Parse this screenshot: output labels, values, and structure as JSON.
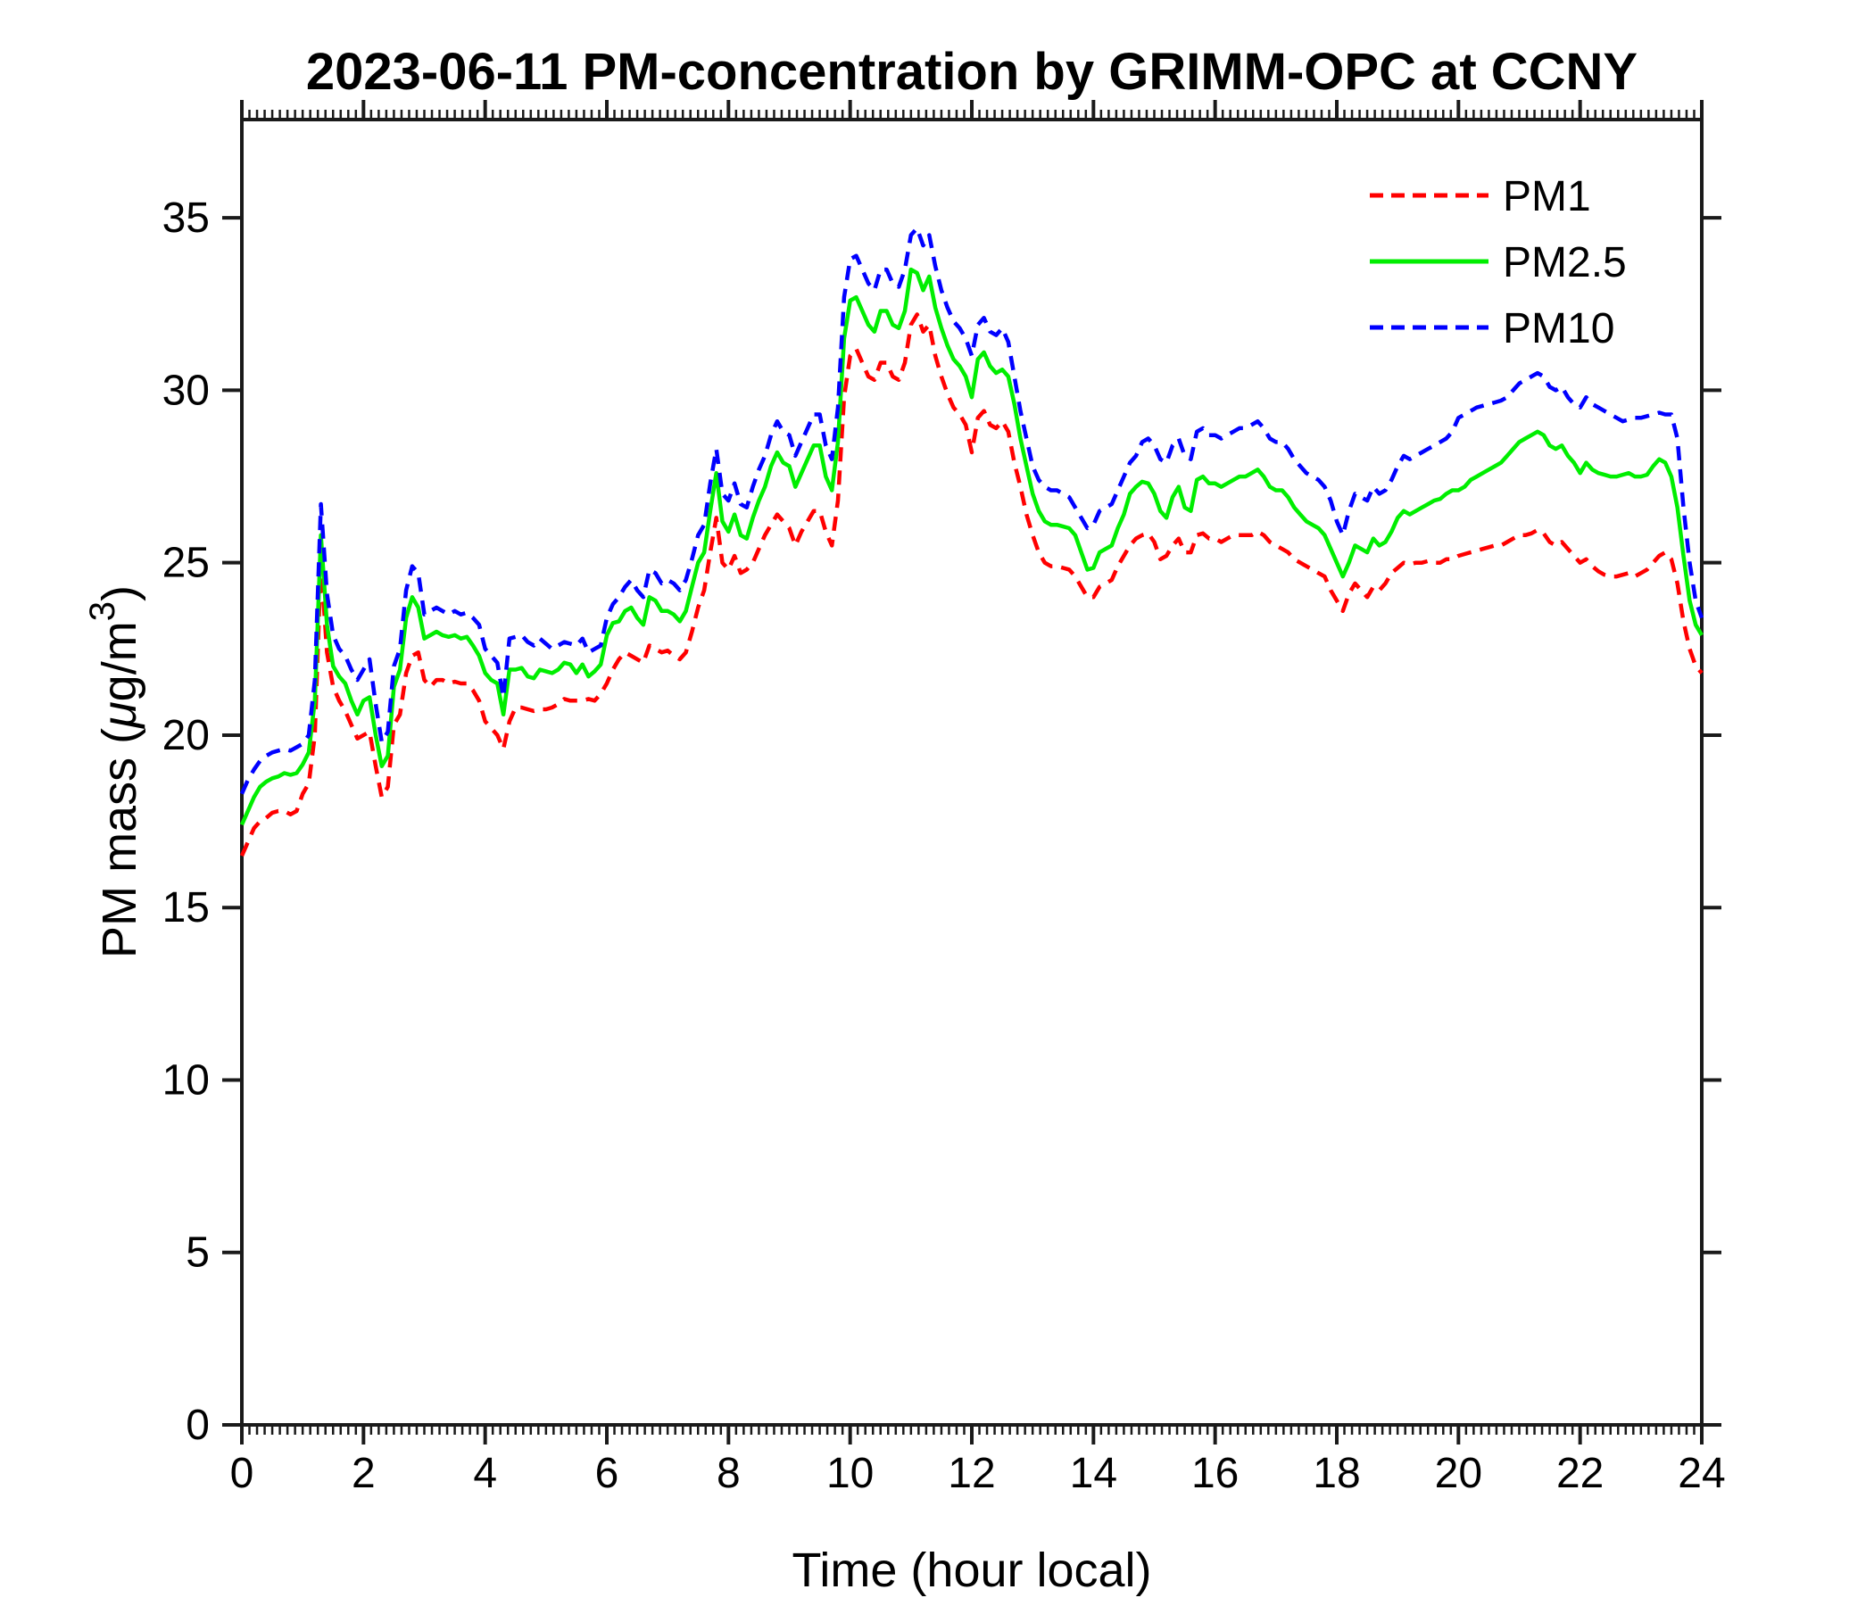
{
  "chart_data": {
    "type": "line",
    "title": "2023-06-11 PM-concentration by GRIMM-OPC at CCNY",
    "xlabel": "Time (hour local)",
    "ylabel": "PM mass (μg/m³)",
    "ylabel_parts": {
      "prefix": "PM mass (",
      "mu": "μ",
      "mid": "g/m",
      "sup": "3",
      "suffix": ")"
    },
    "xlim": [
      0,
      24
    ],
    "ylim": [
      0,
      37.85
    ],
    "x_ticks": [
      0,
      2,
      4,
      6,
      8,
      10,
      12,
      14,
      16,
      18,
      20,
      22,
      24
    ],
    "y_ticks": [
      0,
      5,
      10,
      15,
      20,
      25,
      30,
      35
    ],
    "x_minor_step": 0.125,
    "grid": false,
    "legend_position": "top-right-inside",
    "axis_color": "#1a1a1a",
    "background_color": "#ffffff",
    "x": [
      0,
      0.1,
      0.2,
      0.3,
      0.4,
      0.5,
      0.6,
      0.7,
      0.8,
      0.9,
      1,
      1.1,
      1.2,
      1.3,
      1.4,
      1.5,
      1.6,
      1.7,
      1.8,
      1.9,
      2,
      2.1,
      2.2,
      2.3,
      2.4,
      2.5,
      2.6,
      2.7,
      2.8,
      2.9,
      3,
      3.1,
      3.2,
      3.3,
      3.4,
      3.5,
      3.6,
      3.7,
      3.8,
      3.9,
      4,
      4.1,
      4.2,
      4.3,
      4.4,
      4.5,
      4.6,
      4.7,
      4.8,
      4.9,
      5,
      5.1,
      5.2,
      5.3,
      5.4,
      5.5,
      5.6,
      5.7,
      5.8,
      5.9,
      6,
      6.1,
      6.2,
      6.3,
      6.4,
      6.5,
      6.6,
      6.7,
      6.8,
      6.9,
      7,
      7.1,
      7.2,
      7.3,
      7.4,
      7.5,
      7.6,
      7.7,
      7.8,
      7.9,
      8,
      8.1,
      8.2,
      8.3,
      8.4,
      8.5,
      8.6,
      8.7,
      8.8,
      8.9,
      9,
      9.1,
      9.2,
      9.3,
      9.4,
      9.5,
      9.6,
      9.7,
      9.8,
      9.9,
      10,
      10.1,
      10.2,
      10.3,
      10.4,
      10.5,
      10.6,
      10.7,
      10.8,
      10.9,
      11,
      11.1,
      11.2,
      11.3,
      11.4,
      11.5,
      11.6,
      11.7,
      11.8,
      11.9,
      12,
      12.1,
      12.2,
      12.3,
      12.4,
      12.5,
      12.6,
      12.7,
      12.8,
      12.9,
      13,
      13.1,
      13.2,
      13.3,
      13.4,
      13.5,
      13.6,
      13.7,
      13.8,
      13.9,
      14,
      14.1,
      14.2,
      14.3,
      14.4,
      14.5,
      14.6,
      14.7,
      14.8,
      14.9,
      15,
      15.1,
      15.2,
      15.3,
      15.4,
      15.5,
      15.6,
      15.7,
      15.8,
      15.9,
      16,
      16.1,
      16.2,
      16.3,
      16.4,
      16.5,
      16.6,
      16.7,
      16.8,
      16.9,
      17,
      17.1,
      17.2,
      17.3,
      17.4,
      17.5,
      17.6,
      17.7,
      17.8,
      17.9,
      18,
      18.1,
      18.2,
      18.3,
      18.4,
      18.5,
      18.6,
      18.7,
      18.8,
      18.9,
      19,
      19.1,
      19.2,
      19.3,
      19.4,
      19.5,
      19.6,
      19.7,
      19.8,
      19.9,
      20,
      20.1,
      20.2,
      20.3,
      20.4,
      20.5,
      20.6,
      20.7,
      20.8,
      20.9,
      21,
      21.1,
      21.2,
      21.3,
      21.4,
      21.5,
      21.6,
      21.7,
      21.8,
      21.9,
      22,
      22.1,
      22.2,
      22.3,
      22.4,
      22.5,
      22.6,
      22.7,
      22.8,
      22.9,
      23,
      23.1,
      23.2,
      23.3,
      23.4,
      23.5,
      23.6,
      23.7,
      23.8,
      23.9,
      24
    ],
    "series": [
      {
        "name": "PM1",
        "color": "#ff0000",
        "style": "dashed",
        "values": [
          16.5,
          16.9,
          17.3,
          17.5,
          17.6,
          17.75,
          17.8,
          17.8,
          17.7,
          17.8,
          18.3,
          18.6,
          20.0,
          25.0,
          22.4,
          21.4,
          21.0,
          20.7,
          20.3,
          19.9,
          20.0,
          20.1,
          19.1,
          18.2,
          18.5,
          20.3,
          20.6,
          21.8,
          22.3,
          22.4,
          21.6,
          21.4,
          21.6,
          21.6,
          21.5,
          21.55,
          21.5,
          21.5,
          21.3,
          21.0,
          20.4,
          20.2,
          20.0,
          19.6,
          20.4,
          20.8,
          20.8,
          20.75,
          20.7,
          20.75,
          20.75,
          20.8,
          20.9,
          21.05,
          21.0,
          21.0,
          21.0,
          21.05,
          21.0,
          21.2,
          21.5,
          21.9,
          22.2,
          22.4,
          22.3,
          22.2,
          22.1,
          22.6,
          22.5,
          22.4,
          22.45,
          22.3,
          22.2,
          22.4,
          23.0,
          23.7,
          24.2,
          25.3,
          26.3,
          25.0,
          24.8,
          25.2,
          24.7,
          24.8,
          25.0,
          25.4,
          25.8,
          26.1,
          26.4,
          26.2,
          26.0,
          25.5,
          25.9,
          26.2,
          26.5,
          26.5,
          25.9,
          25.5,
          26.8,
          29.8,
          31.0,
          31.2,
          30.8,
          30.4,
          30.3,
          30.8,
          30.8,
          30.4,
          30.3,
          30.8,
          31.9,
          32.2,
          31.7,
          31.9,
          31.0,
          30.4,
          29.9,
          29.5,
          29.3,
          29.0,
          28.2,
          29.2,
          29.4,
          29.0,
          28.9,
          29.1,
          28.8,
          27.9,
          27.2,
          26.4,
          25.8,
          25.3,
          25.0,
          24.9,
          24.9,
          24.85,
          24.8,
          24.6,
          24.3,
          24.0,
          24.0,
          24.3,
          24.4,
          24.5,
          24.9,
          25.2,
          25.5,
          25.7,
          25.8,
          25.85,
          25.6,
          25.1,
          25.2,
          25.5,
          25.7,
          25.3,
          25.3,
          25.8,
          25.85,
          25.7,
          25.7,
          25.6,
          25.7,
          25.8,
          25.8,
          25.8,
          25.8,
          25.9,
          25.8,
          25.6,
          25.5,
          25.4,
          25.3,
          25.1,
          25.0,
          24.9,
          24.8,
          24.7,
          24.6,
          24.2,
          23.9,
          23.6,
          24.1,
          24.4,
          24.2,
          24.0,
          24.3,
          24.2,
          24.4,
          24.7,
          24.85,
          25.0,
          24.95,
          25.0,
          25.0,
          25.05,
          25.0,
          25.0,
          25.1,
          25.1,
          25.2,
          25.25,
          25.3,
          25.35,
          25.4,
          25.45,
          25.5,
          25.5,
          25.6,
          25.7,
          25.8,
          25.8,
          25.85,
          25.95,
          25.85,
          25.6,
          25.5,
          25.6,
          25.4,
          25.2,
          25.0,
          25.1,
          24.9,
          24.75,
          24.65,
          24.6,
          24.6,
          24.65,
          24.7,
          24.6,
          24.7,
          24.8,
          25.0,
          25.2,
          25.3,
          25.1,
          24.4,
          23.3,
          22.5,
          22.0,
          21.8
        ]
      },
      {
        "name": "PM2.5",
        "color": "#00ee00",
        "style": "solid",
        "values": [
          17.4,
          17.8,
          18.2,
          18.5,
          18.65,
          18.75,
          18.8,
          18.9,
          18.85,
          18.9,
          19.15,
          19.5,
          21.0,
          25.8,
          23.2,
          22.0,
          21.7,
          21.5,
          21.0,
          20.6,
          21.0,
          21.1,
          20.0,
          19.1,
          19.4,
          21.4,
          21.9,
          23.4,
          24.0,
          23.7,
          22.8,
          22.9,
          23.0,
          22.9,
          22.85,
          22.9,
          22.8,
          22.85,
          22.6,
          22.3,
          21.8,
          21.6,
          21.5,
          20.6,
          21.9,
          21.9,
          21.95,
          21.7,
          21.65,
          21.9,
          21.85,
          21.8,
          21.9,
          22.1,
          22.05,
          21.8,
          22.05,
          21.7,
          21.85,
          22.05,
          22.9,
          23.25,
          23.3,
          23.6,
          23.7,
          23.4,
          23.2,
          24.0,
          23.9,
          23.6,
          23.6,
          23.5,
          23.3,
          23.6,
          24.3,
          25.0,
          25.3,
          26.5,
          27.6,
          26.2,
          25.9,
          26.4,
          25.8,
          25.7,
          26.3,
          26.8,
          27.2,
          27.8,
          28.2,
          27.9,
          27.8,
          27.2,
          27.6,
          28.0,
          28.4,
          28.4,
          27.5,
          27.1,
          28.5,
          31.5,
          32.6,
          32.7,
          32.3,
          31.9,
          31.7,
          32.3,
          32.3,
          31.9,
          31.8,
          32.3,
          33.5,
          33.4,
          32.9,
          33.3,
          32.4,
          31.8,
          31.3,
          30.9,
          30.7,
          30.4,
          29.8,
          30.9,
          31.1,
          30.7,
          30.5,
          30.6,
          30.4,
          29.6,
          28.6,
          27.8,
          27.0,
          26.5,
          26.2,
          26.1,
          26.1,
          26.05,
          26.0,
          25.8,
          25.3,
          24.8,
          24.85,
          25.3,
          25.4,
          25.5,
          26.0,
          26.4,
          27.0,
          27.2,
          27.35,
          27.3,
          27.0,
          26.5,
          26.3,
          26.9,
          27.2,
          26.6,
          26.5,
          27.4,
          27.5,
          27.3,
          27.3,
          27.2,
          27.3,
          27.4,
          27.5,
          27.5,
          27.6,
          27.7,
          27.5,
          27.2,
          27.1,
          27.1,
          26.9,
          26.6,
          26.4,
          26.2,
          26.1,
          26.0,
          25.8,
          25.4,
          25.0,
          24.6,
          25.0,
          25.5,
          25.4,
          25.3,
          25.7,
          25.5,
          25.6,
          25.9,
          26.3,
          26.5,
          26.4,
          26.5,
          26.6,
          26.7,
          26.8,
          26.85,
          27.0,
          27.1,
          27.1,
          27.2,
          27.4,
          27.5,
          27.6,
          27.7,
          27.8,
          27.9,
          28.1,
          28.3,
          28.5,
          28.6,
          28.7,
          28.8,
          28.7,
          28.4,
          28.3,
          28.4,
          28.1,
          27.9,
          27.6,
          27.9,
          27.7,
          27.6,
          27.55,
          27.5,
          27.5,
          27.55,
          27.6,
          27.5,
          27.5,
          27.55,
          27.8,
          28.0,
          27.9,
          27.5,
          26.6,
          25.2,
          23.9,
          23.2,
          22.9
        ]
      },
      {
        "name": "PM10",
        "color": "#0000ff",
        "style": "dashed",
        "values": [
          18.3,
          18.7,
          19.0,
          19.25,
          19.4,
          19.5,
          19.55,
          19.6,
          19.55,
          19.65,
          19.75,
          20.0,
          21.6,
          26.7,
          24.1,
          22.9,
          22.5,
          22.3,
          21.9,
          21.6,
          21.9,
          22.2,
          20.9,
          19.8,
          20.1,
          22.0,
          22.5,
          24.2,
          24.9,
          24.7,
          23.5,
          23.6,
          23.7,
          23.6,
          23.5,
          23.6,
          23.5,
          23.55,
          23.4,
          23.2,
          22.5,
          22.3,
          22.1,
          21.1,
          22.8,
          22.85,
          22.9,
          22.7,
          22.6,
          22.8,
          22.65,
          22.5,
          22.6,
          22.7,
          22.65,
          22.6,
          22.8,
          22.4,
          22.5,
          22.6,
          23.4,
          23.8,
          24.0,
          24.3,
          24.5,
          24.2,
          24.0,
          24.8,
          24.7,
          24.4,
          24.5,
          24.4,
          24.2,
          24.5,
          25.1,
          25.8,
          26.1,
          27.3,
          28.3,
          27.0,
          26.8,
          27.3,
          26.7,
          26.6,
          27.2,
          27.7,
          28.1,
          28.7,
          29.1,
          28.8,
          28.7,
          28.1,
          28.5,
          28.9,
          29.3,
          29.3,
          28.4,
          28.0,
          29.5,
          32.7,
          33.8,
          33.9,
          33.5,
          33.1,
          32.9,
          33.5,
          33.5,
          33.1,
          33.0,
          33.5,
          34.5,
          34.7,
          34.2,
          34.5,
          33.6,
          32.9,
          32.4,
          32.0,
          31.8,
          31.5,
          31.0,
          31.9,
          32.1,
          31.7,
          31.6,
          31.8,
          31.4,
          30.4,
          29.4,
          28.6,
          27.8,
          27.4,
          27.2,
          27.1,
          27.1,
          27.0,
          26.9,
          26.6,
          26.3,
          26.0,
          26.1,
          26.5,
          26.6,
          26.7,
          27.1,
          27.5,
          27.9,
          28.1,
          28.5,
          28.6,
          28.4,
          28.0,
          27.9,
          28.4,
          28.6,
          28.1,
          28.0,
          28.8,
          28.9,
          28.7,
          28.7,
          28.6,
          28.7,
          28.8,
          28.9,
          28.9,
          29.0,
          29.1,
          28.9,
          28.6,
          28.5,
          28.5,
          28.3,
          28.0,
          27.8,
          27.6,
          27.5,
          27.4,
          27.2,
          26.8,
          26.2,
          25.8,
          26.5,
          27.0,
          26.9,
          26.8,
          27.2,
          27.0,
          27.1,
          27.4,
          27.8,
          28.1,
          28.0,
          28.1,
          28.2,
          28.3,
          28.4,
          28.5,
          28.6,
          28.8,
          29.2,
          29.3,
          29.4,
          29.5,
          29.55,
          29.6,
          29.65,
          29.7,
          29.8,
          30.0,
          30.2,
          30.3,
          30.4,
          30.5,
          30.4,
          30.1,
          30.0,
          30.1,
          29.8,
          29.6,
          29.5,
          29.8,
          29.6,
          29.5,
          29.4,
          29.3,
          29.2,
          29.1,
          29.15,
          29.2,
          29.2,
          29.25,
          29.3,
          29.35,
          29.3,
          29.3,
          28.6,
          26.6,
          25.0,
          23.9,
          23.4
        ]
      }
    ]
  }
}
